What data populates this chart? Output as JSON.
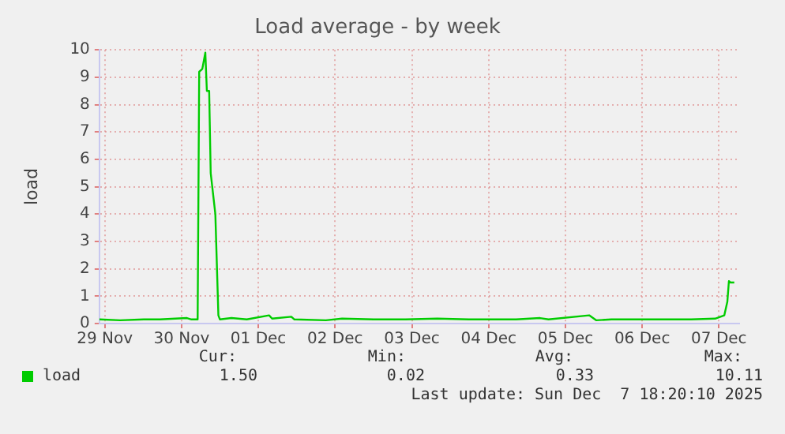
{
  "chart_data": {
    "type": "line",
    "title": "Load average - by week",
    "ylabel": "load",
    "x": [
      "2025-11-29T10:19",
      "2025-11-29T16:48",
      "2025-11-30T00:14",
      "2025-11-30T05:17",
      "2025-11-30T10:05",
      "2025-11-30T13:41",
      "2025-11-30T15:07",
      "2025-11-30T17:02",
      "2025-11-30T17:31",
      "2025-11-30T18:29",
      "2025-11-30T19:26",
      "2025-11-30T19:55",
      "2025-11-30T20:38",
      "2025-11-30T21:07",
      "2025-11-30T22:34",
      "2025-11-30T23:31",
      "2025-12-01T00:00",
      "2025-12-01T03:36",
      "2025-12-01T08:24",
      "2025-12-01T15:22",
      "2025-12-01T16:19",
      "2025-12-01T22:19",
      "2025-12-01T23:17",
      "2025-12-02T09:07",
      "2025-12-02T14:10",
      "2025-12-03T00:00",
      "2025-12-03T10:05",
      "2025-12-03T19:55",
      "2025-12-04T05:46",
      "2025-12-04T20:38",
      "2025-12-05T04:05",
      "2025-12-05T06:43",
      "2025-12-05T19:26",
      "2025-12-05T21:36",
      "2025-12-06T02:24",
      "2025-12-06T17:17",
      "2025-12-07T03:22",
      "2025-12-07T10:48",
      "2025-12-07T13:41",
      "2025-12-07T14:38",
      "2025-12-07T15:07",
      "2025-12-07T15:36",
      "2025-12-07T16:48"
    ],
    "series": [
      {
        "name": "load",
        "color": "#00cc00",
        "values": [
          0.15,
          0.12,
          0.15,
          0.15,
          0.18,
          0.2,
          0.15,
          0.15,
          9.2,
          9.3,
          9.9,
          8.5,
          8.5,
          5.5,
          4.0,
          0.3,
          0.15,
          0.2,
          0.15,
          0.3,
          0.18,
          0.25,
          0.15,
          0.12,
          0.18,
          0.15,
          0.15,
          0.18,
          0.15,
          0.15,
          0.2,
          0.15,
          0.3,
          0.12,
          0.15,
          0.15,
          0.15,
          0.18,
          0.3,
          0.8,
          1.55,
          1.5,
          1.5
        ]
      }
    ],
    "xlim": [
      "2025-11-29T10:19",
      "2025-12-07T18:20"
    ],
    "xticks": [
      {
        "value": "2025-11-29T12:00",
        "label": "29 Nov"
      },
      {
        "value": "2025-11-30T12:00",
        "label": "30 Nov"
      },
      {
        "value": "2025-12-01T12:00",
        "label": "01 Dec"
      },
      {
        "value": "2025-12-02T12:00",
        "label": "02 Dec"
      },
      {
        "value": "2025-12-03T12:00",
        "label": "03 Dec"
      },
      {
        "value": "2025-12-04T12:00",
        "label": "04 Dec"
      },
      {
        "value": "2025-12-05T12:00",
        "label": "05 Dec"
      },
      {
        "value": "2025-12-06T12:00",
        "label": "06 Dec"
      },
      {
        "value": "2025-12-07T12:00",
        "label": "07 Dec"
      }
    ],
    "ylim": [
      0,
      10
    ],
    "yticks": [
      0,
      1,
      2,
      3,
      4,
      5,
      6,
      7,
      8,
      9,
      10
    ],
    "grid": true,
    "legend": "bottom left",
    "marker": "none",
    "line_style": "solid",
    "annotations": [
      "Cur:",
      "Min:",
      "Avg:",
      "Max:",
      "1.50",
      "0.02",
      "0.33",
      "10.11",
      "Last update: Sun Dec  7 18:20:10 2025"
    ]
  }
}
